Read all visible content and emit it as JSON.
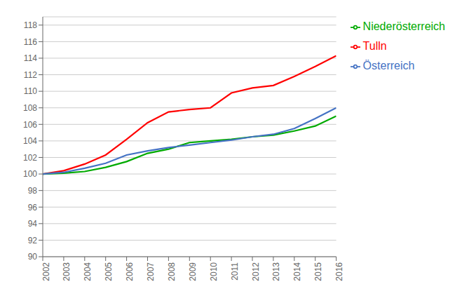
{
  "chart_data": {
    "type": "line",
    "x": [
      2002,
      2003,
      2004,
      2005,
      2006,
      2007,
      2008,
      2009,
      2010,
      2011,
      2012,
      2013,
      2014,
      2015,
      2016
    ],
    "series": [
      {
        "name": "Tulln",
        "color": "#ff0000",
        "values": [
          100.0,
          100.4,
          101.2,
          102.3,
          104.2,
          106.2,
          107.5,
          107.8,
          108.0,
          109.8,
          110.4,
          110.7,
          111.8,
          113.0,
          114.3
        ]
      },
      {
        "name": "Niederösterreich",
        "color": "#00aa00",
        "values": [
          100.0,
          100.1,
          100.3,
          100.8,
          101.5,
          102.5,
          103.0,
          103.8,
          104.0,
          104.2,
          104.5,
          104.7,
          105.2,
          105.8,
          107.0
        ]
      },
      {
        "name": "Österreich",
        "color": "#4472c4",
        "values": [
          100.0,
          100.2,
          100.7,
          101.3,
          102.3,
          102.8,
          103.2,
          103.5,
          103.8,
          104.1,
          104.5,
          104.8,
          105.5,
          106.7,
          108.0
        ]
      }
    ],
    "xlim": [
      2002,
      2016
    ],
    "xticks": [
      2002,
      2003,
      2004,
      2005,
      2006,
      2007,
      2008,
      2009,
      2010,
      2011,
      2012,
      2013,
      2014,
      2015,
      2016
    ],
    "ylim": [
      90,
      119
    ],
    "yticks": [
      90,
      92,
      94,
      96,
      98,
      100,
      102,
      104,
      106,
      108,
      110,
      112,
      114,
      116,
      118
    ],
    "grid": true,
    "legend": "right"
  }
}
